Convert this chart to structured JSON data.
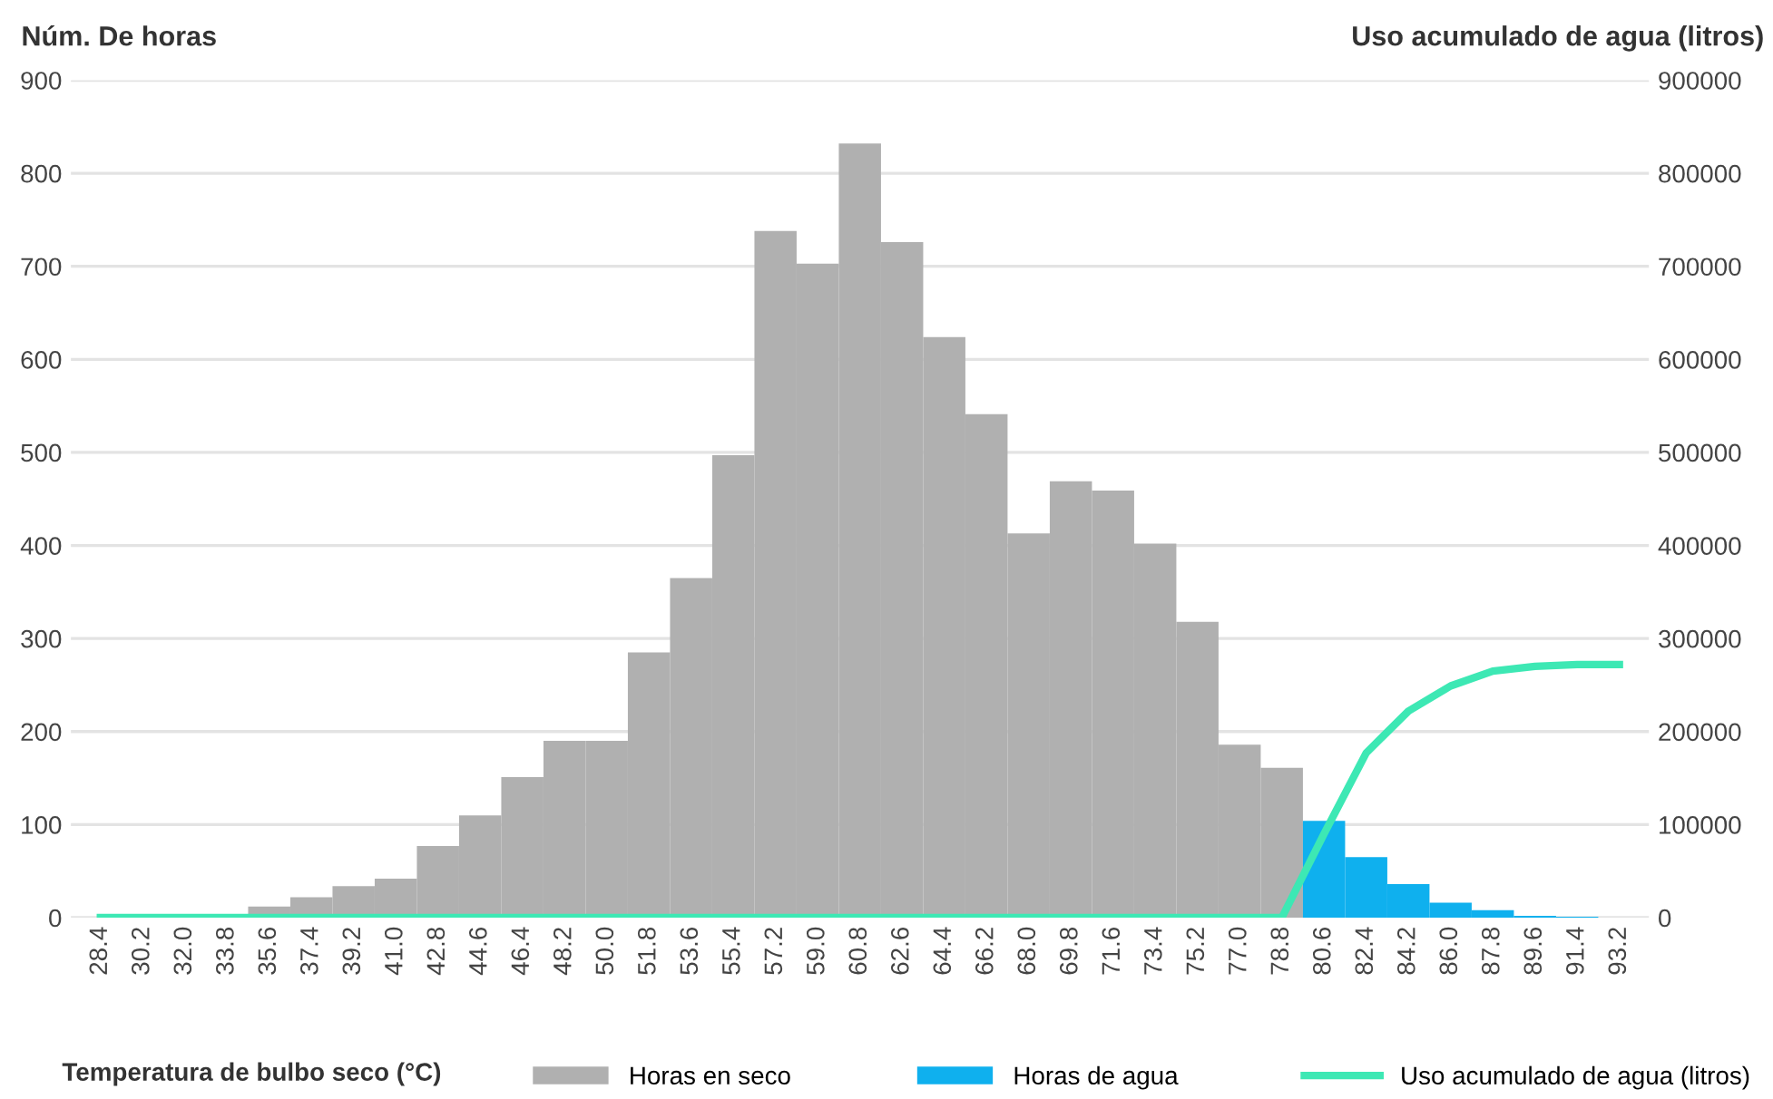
{
  "chart_data": {
    "type": "bar",
    "xlabel": "Temperatura de bulbo seco (°C)",
    "ylabel": "Núm. De horas",
    "y2label": "Uso acumulado de agua (litros)",
    "categories": [
      "28.4",
      "30.2",
      "32.0",
      "33.8",
      "35.6",
      "37.4",
      "39.2",
      "41.0",
      "42.8",
      "44.6",
      "46.4",
      "48.2",
      "50.0",
      "51.8",
      "53.6",
      "55.4",
      "57.2",
      "59.0",
      "60.8",
      "62.6",
      "64.4",
      "66.2",
      "68.0",
      "69.8",
      "71.6",
      "73.4",
      "75.2",
      "77.0",
      "78.8",
      "80.6",
      "82.4",
      "84.2",
      "86.0",
      "87.8",
      "89.6",
      "91.4",
      "93.2"
    ],
    "series": [
      {
        "name": "Horas en seco",
        "color": "#b0b0b0",
        "values": [
          0,
          null,
          null,
          null,
          12,
          22,
          34,
          42,
          77,
          110,
          151,
          190,
          190,
          285,
          365,
          497,
          738,
          703,
          832,
          726,
          624,
          541,
          413,
          469,
          459,
          402,
          318,
          186,
          161,
          null,
          null,
          null,
          null,
          null,
          null,
          null,
          null
        ]
      },
      {
        "name": "Horas de agua",
        "color": "#0fb0ee",
        "values": [
          null,
          null,
          null,
          null,
          null,
          null,
          null,
          null,
          null,
          null,
          null,
          null,
          null,
          null,
          null,
          null,
          null,
          null,
          null,
          null,
          null,
          null,
          null,
          null,
          null,
          null,
          null,
          null,
          null,
          104,
          65,
          36,
          16,
          8,
          2,
          1,
          0
        ]
      },
      {
        "name": "Uso acumulado de agua (litros)",
        "type": "line",
        "axis": "y2",
        "color": "#3de8b4",
        "values": [
          0,
          0,
          0,
          0,
          0,
          0,
          0,
          0,
          0,
          0,
          0,
          0,
          0,
          0,
          0,
          0,
          0,
          0,
          0,
          0,
          0,
          0,
          0,
          0,
          0,
          0,
          0,
          0,
          0,
          90000,
          177000,
          222000,
          249000,
          265000,
          270000,
          272000,
          272000
        ]
      }
    ],
    "ylim": [
      0,
      900
    ],
    "yticks": [
      0,
      100,
      200,
      300,
      400,
      500,
      600,
      700,
      800,
      900
    ],
    "y2lim": [
      0,
      900000
    ],
    "y2ticks": [
      0,
      100000,
      200000,
      300000,
      400000,
      500000,
      600000,
      700000,
      800000,
      900000
    ],
    "grid": "y",
    "legend": "bottom"
  }
}
